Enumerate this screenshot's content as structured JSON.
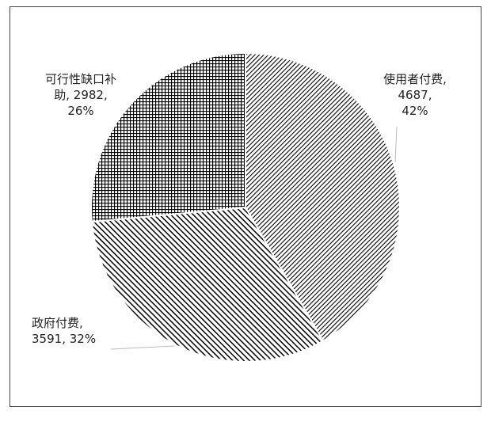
{
  "chart_data": {
    "type": "pie",
    "categories": [
      "使用者付费",
      "政府付费",
      "可行性缺口补助"
    ],
    "values": [
      4687,
      3591,
      2982
    ],
    "percent_labels": [
      "42%",
      "32%",
      "26%"
    ],
    "label_separator": ", ",
    "colors": [
      "#5b9bd5",
      "#5b9bd5",
      "#5b9bd5"
    ],
    "patterns": [
      "fine-diagonal",
      "wide-diagonal",
      "grid"
    ]
  }
}
